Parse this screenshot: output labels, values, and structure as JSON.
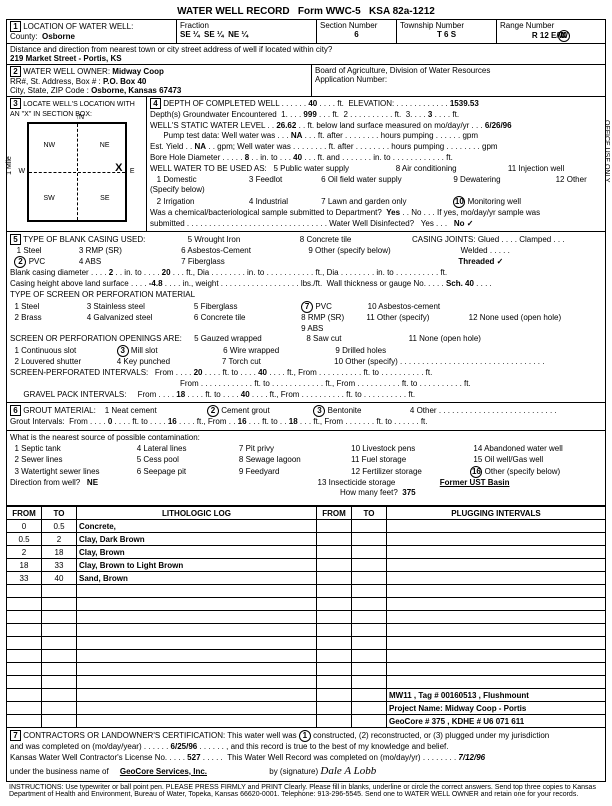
{
  "form": {
    "title": "WATER WELL RECORD",
    "form_no": "Form WWC-5",
    "ksa": "KSA 82a-1212"
  },
  "loc": {
    "county": "Osborne",
    "fraction": [
      "SE ¼",
      "SE ¼",
      "NE ¼"
    ],
    "section": "6",
    "township": "T  6  S",
    "range": "R  12  E/W",
    "address_label": "Distance and direction from nearest town or city street address of well if located within city?",
    "address": "219 Market Street - Portis, KS"
  },
  "owner": {
    "label": "WATER WELL OWNER:",
    "name": "Midway Coop",
    "rr": "RR#, St. Address, Box #",
    "box": "P.O. Box 40",
    "csz_label": "City, State, ZIP Code",
    "csz": "Osborne, Kansas  67473",
    "board": "Board of Agriculture, Division of Water Resources",
    "appno": "Application Number:"
  },
  "locate": {
    "label": "LOCATE WELL'S LOCATION WITH AN \"X\" IN SECTION BOX:",
    "compass": [
      "NW",
      "NE",
      "SW",
      "SE"
    ],
    "axis": [
      "N",
      "S",
      "E",
      "W"
    ],
    "mile": "1 Mile"
  },
  "depth": {
    "completed_label": "DEPTH OF COMPLETED WELL",
    "completed": "40",
    "elev_label": "ELEVATION:",
    "elev": "1539.53",
    "gw_label": "Depth(s) Groundwater Encountered",
    "gw1": "999",
    "gw2": "",
    "gw3": "3",
    "swl_label": "WELL'S STATIC WATER LEVEL",
    "swl": "26.62",
    "swl_unit": "ft. below land surface measured on mo/day/yr",
    "swl_date": "6/26/96",
    "pump_label": "Pump test data:  Well water was",
    "pump_na": "NA",
    "hrs": "hours pumping",
    "yield_label": "Est. Yield",
    "yield_na": "NA",
    "gpm": "gpm",
    "bore_label": "Bore Hole Diameter",
    "bore1": "8",
    "bore2": "40",
    "use_label": "WELL WATER TO BE USED AS:",
    "uses": [
      "1 Domestic",
      "2 Irrigation",
      "3 Feedlot",
      "4 Industrial",
      "5 Public water supply",
      "6 Oil field water supply",
      "7 Lawn and garden only",
      "8 Air conditioning",
      "9 Dewatering",
      "Monitoring well",
      "11 Injection well",
      "12 Other (Specify below)"
    ],
    "use_circ": "10",
    "chem_label": "Was a chemical/bacteriological sample submitted to Department?",
    "chem_yes": "Yes",
    "chem_no": "No",
    "chem_if": "If yes, mo/day/yr sample was",
    "submitted": "submitted",
    "disinf": "Water Well Disinfected?",
    "disinf_no": "No ✓"
  },
  "casing": {
    "label": "TYPE OF BLANK CASING USED:",
    "opts": [
      "1 Steel",
      "PVC",
      "3 RMP (SR)",
      "4 ABS",
      "5 Wrought Iron",
      "6 Asbestos-Cement",
      "7 Fiberglass",
      "8 Concrete tile",
      "9 Other (specify below)"
    ],
    "circ": "2",
    "joints_label": "CASING JOINTS:",
    "joints": [
      "Glued",
      "Clamped",
      "Welded",
      "Threaded ✓"
    ],
    "dia_label": "Blank casing diameter",
    "dia": "2",
    "to": "20",
    "height_label": "Casing height above land surface",
    "height": "-4.8",
    "thick_label": "Wall thickness or gauge No.",
    "thick": "Sch. 40",
    "screen_label": "TYPE OF SCREEN OR PERFORATION MATERIAL",
    "screen_opts": [
      "1 Steel",
      "2 Brass",
      "3 Stainless steel",
      "4 Galvanized steel",
      "5 Fiberglass",
      "6 Concrete tile",
      "PVC",
      "8 RMP (SR)",
      "9 ABS",
      "10 Asbestos-cement",
      "11 Other (specify)",
      "12 None used (open hole)"
    ],
    "screen_circ": "7",
    "open_label": "SCREEN OR PERFORATION OPENINGS ARE:",
    "open_opts": [
      "1 Continuous slot",
      "2 Louvered shutter",
      "Mill slot",
      "4 Key punched",
      "5 Gauzed wrapped",
      "6 Wire wrapped",
      "7 Torch cut",
      "8 Saw cut",
      "9 Drilled holes",
      "10 Other (specify)",
      "11 None (open hole)"
    ],
    "open_circ": "3",
    "perf_label": "SCREEN-PERFORATED INTERVALS:",
    "perf_from": "20",
    "perf_to": "40",
    "gravel_label": "GRAVEL PACK INTERVALS:",
    "gravel_from": "18",
    "gravel_to": "40"
  },
  "grout": {
    "label": "GROUT MATERIAL:",
    "opts": [
      "1 Neat cement",
      "Cement grout",
      "Bentonite",
      "4 Other"
    ],
    "c1": "2",
    "c2": "3",
    "int_label": "Grout Intervals:",
    "from1": "0",
    "to1": "16",
    "from2": "16",
    "to2": "18",
    "contam_label": "What is the nearest source of possible contamination:",
    "contam_opts": [
      "1 Septic tank",
      "2 Sewer lines",
      "3 Watertight sewer lines",
      "4 Lateral lines",
      "5 Cess pool",
      "6 Seepage pit",
      "7 Pit privy",
      "8 Sewage lagoon",
      "9 Feedyard",
      "10 Livestock pens",
      "11 Fuel storage",
      "12 Fertilizer storage",
      "13 Insecticide storage",
      "14 Abandoned water well",
      "15 Oil well/Gas well",
      "Other (specify below)"
    ],
    "contam_circ": "16",
    "other": "Former UST Basin",
    "dir_label": "Direction from well?",
    "dir": "NE",
    "feet_label": "How many feet?",
    "feet": "375"
  },
  "log": {
    "headers": [
      "FROM",
      "TO",
      "LITHOLOGIC LOG",
      "FROM",
      "TO",
      "PLUGGING INTERVALS"
    ],
    "rows": [
      [
        "0",
        "0.5",
        "Concrete,",
        "",
        "",
        ""
      ],
      [
        "0.5",
        "2",
        "Clay, Dark Brown",
        "",
        "",
        ""
      ],
      [
        "2",
        "18",
        "Clay, Brown",
        "",
        "",
        ""
      ],
      [
        "18",
        "33",
        "Clay, Brown to Light Brown",
        "",
        "",
        ""
      ],
      [
        "33",
        "40",
        "Sand, Brown",
        "",
        "",
        ""
      ]
    ],
    "blanks": 11,
    "notes": [
      "MW11 , Tag # 00160513 , Flushmount",
      "Project Name: Midway Coop - Portis",
      "GeoCore # 375 , KDHE # U6 071 611"
    ]
  },
  "cert": {
    "label": "CONTRACTORS OR LANDOWNER'S CERTIFICATION:  This water well was",
    "circ": "1",
    "actions": "constructed, (2) reconstructed, or (3) plugged under my jurisdiction",
    "comp_label": "and was completed on (mo/day/year)",
    "comp": "6/25/96",
    "rec": "and this record is true to the best of my knowledge and belief.",
    "lic_label": "Kansas Water Well Contractor's License No.",
    "lic": "527",
    "rec2": "This Water Well Record was completed on (mo/day/yr)",
    "rec2_date": "7/12/96",
    "under": "under the business name of",
    "biz": "GeoCore Services, Inc.",
    "by": "by (signature)"
  },
  "instr": "INSTRUCTIONS:  Use typewriter or ball point pen. PLEASE PRESS FIRMLY and PRINT Clearly. Please fill in blanks, underline or circle the correct answers. Send top three copies to Kansas Department of Health and Environment, Bureau of Water, Topeka, Kansas 66620-0001. Telephone: 913-296-5545. Send one to WATER WELL OWNER and retain one for your records.",
  "side": [
    "OFFICE USE ONLY",
    "T",
    "R",
    "E/W",
    "SEC."
  ]
}
